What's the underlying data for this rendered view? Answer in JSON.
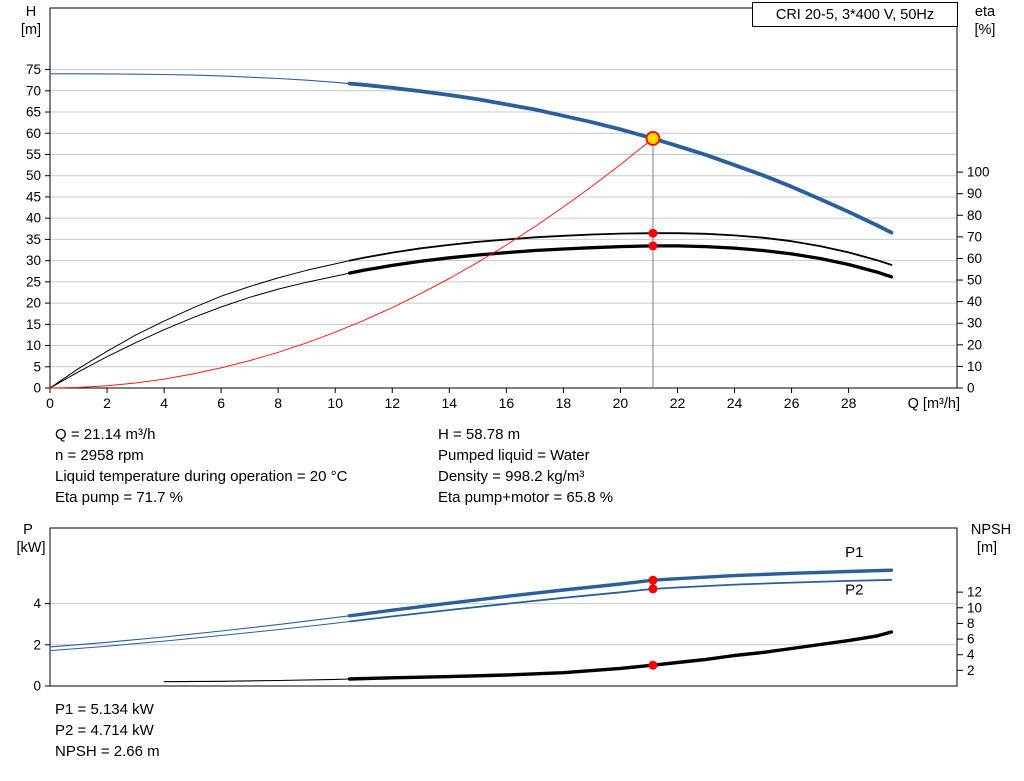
{
  "axes": {
    "top": {
      "left_title": "H",
      "left_unit": "[m]",
      "right_title": "eta",
      "right_unit": "[%]",
      "x_title": "Q [m³/h]"
    },
    "bottom": {
      "left_title": "P",
      "left_unit": "[kW]",
      "right_title": "NPSH",
      "right_unit": "[m]"
    }
  },
  "details": {
    "left": [
      "Q = 21.14 m³/h",
      "n = 2958 rpm",
      "Liquid temperature during operation = 20 °C",
      "Eta pump = 71.7 %"
    ],
    "right": [
      "H = 58.78 m",
      "Pumped liquid = Water",
      "Density = 998.2 kg/m³",
      "Eta pump+motor = 65.8 %"
    ]
  },
  "results": [
    "P1 = 5.134 kW",
    "P2 = 4.714 kW",
    "NPSH = 2.66 m"
  ],
  "colors": {
    "curve_blue": "#2a5f9e",
    "label_blue": "#2e75b6",
    "curve_black": "#000000",
    "system_red": "#ff1a1a",
    "grid": "#c9c9c9",
    "duty_line": "#808080",
    "duty_marker_fill": "#ffd800",
    "duty_marker_stroke": "#ff0000",
    "dot_red": "#ff0000"
  },
  "chart_data": [
    {
      "type": "line",
      "title": "CRI 20-5, 3*400 V, 50Hz",
      "x_axis": {
        "min": 0,
        "max": 31.8,
        "ticks": [
          0,
          2,
          4,
          6,
          8,
          10,
          12,
          14,
          16,
          18,
          20,
          22,
          24,
          26,
          28
        ]
      },
      "y_left": {
        "label": "H [m]",
        "min": 0,
        "max": 89.5,
        "ticks": [
          0,
          5,
          10,
          15,
          20,
          25,
          30,
          35,
          40,
          45,
          50,
          55,
          60,
          65,
          70,
          75
        ]
      },
      "y_right": {
        "label": "eta [%]",
        "min": 0,
        "max": 176,
        "ticks": [
          0,
          10,
          20,
          30,
          40,
          50,
          60,
          70,
          80,
          90,
          100
        ]
      },
      "duty_point": {
        "Q": 21.14,
        "H": 58.78,
        "eta_pump": 71.7,
        "eta_pump_motor": 65.8
      },
      "duty_line": {
        "q": 21.14,
        "v": 58.78
      },
      "series": [
        {
          "id": "pump-curve-h",
          "name": "H (pump curve)",
          "axis": "left",
          "color_key": "curve_blue",
          "w1": 1.1,
          "w2": 3.8,
          "thick_from": 10.5,
          "points": [
            [
              0,
              74
            ],
            [
              1,
              74
            ],
            [
              2,
              73.97
            ],
            [
              3,
              73.9
            ],
            [
              4,
              73.83
            ],
            [
              5,
              73.7
            ],
            [
              6,
              73.5
            ],
            [
              7,
              73.2
            ],
            [
              8,
              72.9
            ],
            [
              9,
              72.5
            ],
            [
              10,
              72
            ],
            [
              10.5,
              71.7
            ],
            [
              11,
              71.4
            ],
            [
              12,
              70.7
            ],
            [
              13,
              69.9
            ],
            [
              14,
              69
            ],
            [
              15,
              68
            ],
            [
              16,
              66.8
            ],
            [
              17,
              65.6
            ],
            [
              18,
              64.1
            ],
            [
              19,
              62.6
            ],
            [
              20,
              60.9
            ],
            [
              21.14,
              58.78
            ],
            [
              22,
              57
            ],
            [
              23,
              54.9
            ],
            [
              24,
              52.5
            ],
            [
              25,
              50.1
            ],
            [
              26,
              47.4
            ],
            [
              27,
              44.5
            ],
            [
              28,
              41.5
            ],
            [
              29,
              38.3
            ],
            [
              29.5,
              36.6
            ]
          ]
        },
        {
          "id": "eta-pump",
          "name": "Eta pump",
          "axis": "right",
          "color_key": "curve_black",
          "w1": 1,
          "w2": 1.8,
          "thick_from": 10.5,
          "points": [
            [
              0,
              0
            ],
            [
              1,
              9
            ],
            [
              2,
              17
            ],
            [
              3,
              24.5
            ],
            [
              4,
              31
            ],
            [
              5,
              37
            ],
            [
              6,
              42.5
            ],
            [
              7,
              47
            ],
            [
              8,
              51
            ],
            [
              9,
              54.5
            ],
            [
              10,
              57.5
            ],
            [
              10.5,
              59
            ],
            [
              11,
              60.3
            ],
            [
              12,
              62.7
            ],
            [
              13,
              64.7
            ],
            [
              14,
              66.3
            ],
            [
              15,
              67.7
            ],
            [
              16,
              68.8
            ],
            [
              17,
              69.8
            ],
            [
              18,
              70.5
            ],
            [
              19,
              71.1
            ],
            [
              20,
              71.5
            ],
            [
              21.14,
              71.7
            ],
            [
              22,
              71.7
            ],
            [
              23,
              71.4
            ],
            [
              24,
              70.7
            ],
            [
              25,
              69.6
            ],
            [
              26,
              68
            ],
            [
              27,
              65.7
            ],
            [
              28,
              62.8
            ],
            [
              29,
              59.2
            ],
            [
              29.5,
              57
            ]
          ]
        },
        {
          "id": "eta-pump-motor",
          "name": "Eta pump+motor",
          "axis": "right",
          "color_key": "curve_black",
          "w1": 1,
          "w2": 3.3,
          "thick_from": 10.5,
          "points": [
            [
              0,
              0
            ],
            [
              1,
              7.5
            ],
            [
              2,
              14.5
            ],
            [
              3,
              21
            ],
            [
              4,
              27
            ],
            [
              5,
              32.5
            ],
            [
              6,
              37.5
            ],
            [
              7,
              42
            ],
            [
              8,
              45.8
            ],
            [
              9,
              49
            ],
            [
              10,
              51.8
            ],
            [
              10.5,
              53.2
            ],
            [
              11,
              54.5
            ],
            [
              12,
              56.8
            ],
            [
              13,
              58.7
            ],
            [
              14,
              60.3
            ],
            [
              15,
              61.6
            ],
            [
              16,
              62.7
            ],
            [
              17,
              63.7
            ],
            [
              18,
              64.4
            ],
            [
              19,
              65
            ],
            [
              20,
              65.5
            ],
            [
              21.14,
              65.8
            ],
            [
              22,
              65.8
            ],
            [
              23,
              65.5
            ],
            [
              24,
              64.8
            ],
            [
              25,
              63.7
            ],
            [
              26,
              62.1
            ],
            [
              27,
              60
            ],
            [
              28,
              57.2
            ],
            [
              29,
              53.7
            ],
            [
              29.5,
              51.5
            ]
          ]
        },
        {
          "id": "system-curve",
          "name": "System curve",
          "axis": "left",
          "color_key": "system_red",
          "w1": 1,
          "w2": 1,
          "thick_from": null,
          "points": [
            [
              0,
              0
            ],
            [
              1,
              0.13
            ],
            [
              2,
              0.53
            ],
            [
              3,
              1.18
            ],
            [
              4,
              2.1
            ],
            [
              5,
              3.29
            ],
            [
              6,
              4.74
            ],
            [
              7,
              6.45
            ],
            [
              8,
              8.42
            ],
            [
              9,
              10.65
            ],
            [
              10,
              13.15
            ],
            [
              11,
              15.92
            ],
            [
              12,
              18.94
            ],
            [
              13,
              22.23
            ],
            [
              14,
              25.78
            ],
            [
              15,
              29.6
            ],
            [
              16,
              33.67
            ],
            [
              17,
              38.02
            ],
            [
              18,
              42.62
            ],
            [
              19,
              47.49
            ],
            [
              20,
              52.62
            ],
            [
              21,
              58.01
            ],
            [
              21.14,
              58.78
            ]
          ]
        }
      ],
      "markers": [
        {
          "q": 21.14,
          "v": 58.78,
          "axis": "left",
          "style": "duty"
        },
        {
          "q": 21.14,
          "v": 71.7,
          "axis": "right",
          "style": "dot"
        },
        {
          "q": 21.14,
          "v": 65.8,
          "axis": "right",
          "style": "dot"
        }
      ],
      "annotations": []
    },
    {
      "type": "line",
      "title": "",
      "x_axis": {
        "min": 0,
        "max": 31.8,
        "ticks": []
      },
      "y_left": {
        "label": "P [kW]",
        "min": 0,
        "max": 7.67,
        "ticks": [
          0,
          2,
          4
        ]
      },
      "y_right": {
        "label": "NPSH [m]",
        "min": 0,
        "max": 20.2,
        "ticks": [
          2,
          4,
          6,
          8,
          10,
          12
        ]
      },
      "duty_point": {
        "P1": 5.134,
        "P2": 4.714,
        "NPSH": 2.66
      },
      "duty_line": null,
      "series": [
        {
          "id": "p1-curve",
          "name": "P1",
          "axis": "left",
          "color_key": "curve_blue",
          "w1": 1.1,
          "w2": 3.4,
          "thick_from": 10.5,
          "points": [
            [
              0,
              1.9
            ],
            [
              2,
              2.12
            ],
            [
              4,
              2.38
            ],
            [
              6,
              2.67
            ],
            [
              8,
              2.98
            ],
            [
              10,
              3.32
            ],
            [
              10.5,
              3.41
            ],
            [
              12,
              3.68
            ],
            [
              14,
              4.02
            ],
            [
              16,
              4.35
            ],
            [
              18,
              4.66
            ],
            [
              20,
              4.95
            ],
            [
              21.14,
              5.134
            ],
            [
              22,
              5.21
            ],
            [
              24,
              5.36
            ],
            [
              26,
              5.47
            ],
            [
              28,
              5.56
            ],
            [
              29.5,
              5.62
            ]
          ]
        },
        {
          "id": "p2-curve",
          "name": "P2",
          "axis": "left",
          "color_key": "curve_blue",
          "w1": 1,
          "w2": 1.8,
          "thick_from": 10.5,
          "points": [
            [
              0,
              1.72
            ],
            [
              2,
              1.93
            ],
            [
              4,
              2.18
            ],
            [
              6,
              2.45
            ],
            [
              8,
              2.74
            ],
            [
              10,
              3.05
            ],
            [
              10.5,
              3.13
            ],
            [
              12,
              3.38
            ],
            [
              14,
              3.69
            ],
            [
              16,
              3.99
            ],
            [
              18,
              4.28
            ],
            [
              20,
              4.55
            ],
            [
              21.14,
              4.714
            ],
            [
              22,
              4.78
            ],
            [
              24,
              4.92
            ],
            [
              26,
              5.02
            ],
            [
              28,
              5.1
            ],
            [
              29.5,
              5.15
            ]
          ]
        },
        {
          "id": "npsh-curve",
          "name": "NPSH",
          "axis": "right",
          "color_key": "curve_black",
          "w1": 1.1,
          "w2": 3.4,
          "thick_from": 10.5,
          "points": [
            [
              4,
              0.55
            ],
            [
              6,
              0.6
            ],
            [
              8,
              0.7
            ],
            [
              10,
              0.85
            ],
            [
              10.5,
              0.9
            ],
            [
              12,
              1.05
            ],
            [
              14,
              1.2
            ],
            [
              16,
              1.4
            ],
            [
              18,
              1.7
            ],
            [
              20,
              2.25
            ],
            [
              21.14,
              2.66
            ],
            [
              22,
              3
            ],
            [
              23,
              3.4
            ],
            [
              24,
              3.9
            ],
            [
              25,
              4.3
            ],
            [
              26,
              4.8
            ],
            [
              27,
              5.3
            ],
            [
              28,
              5.8
            ],
            [
              29,
              6.4
            ],
            [
              29.5,
              6.9
            ]
          ]
        }
      ],
      "markers": [
        {
          "q": 21.14,
          "v": 5.134,
          "axis": "left",
          "style": "dot"
        },
        {
          "q": 21.14,
          "v": 4.714,
          "axis": "left",
          "style": "dot"
        },
        {
          "q": 21.14,
          "v": 2.66,
          "axis": "right",
          "style": "dot"
        }
      ],
      "annotations": [
        {
          "text": "P1",
          "q": 28.2,
          "v": 6.26,
          "axis": "left",
          "color_key": "label_blue"
        },
        {
          "text": "P2",
          "q": 28.2,
          "v": 4.45,
          "axis": "left",
          "color_key": "label_blue"
        }
      ]
    }
  ]
}
